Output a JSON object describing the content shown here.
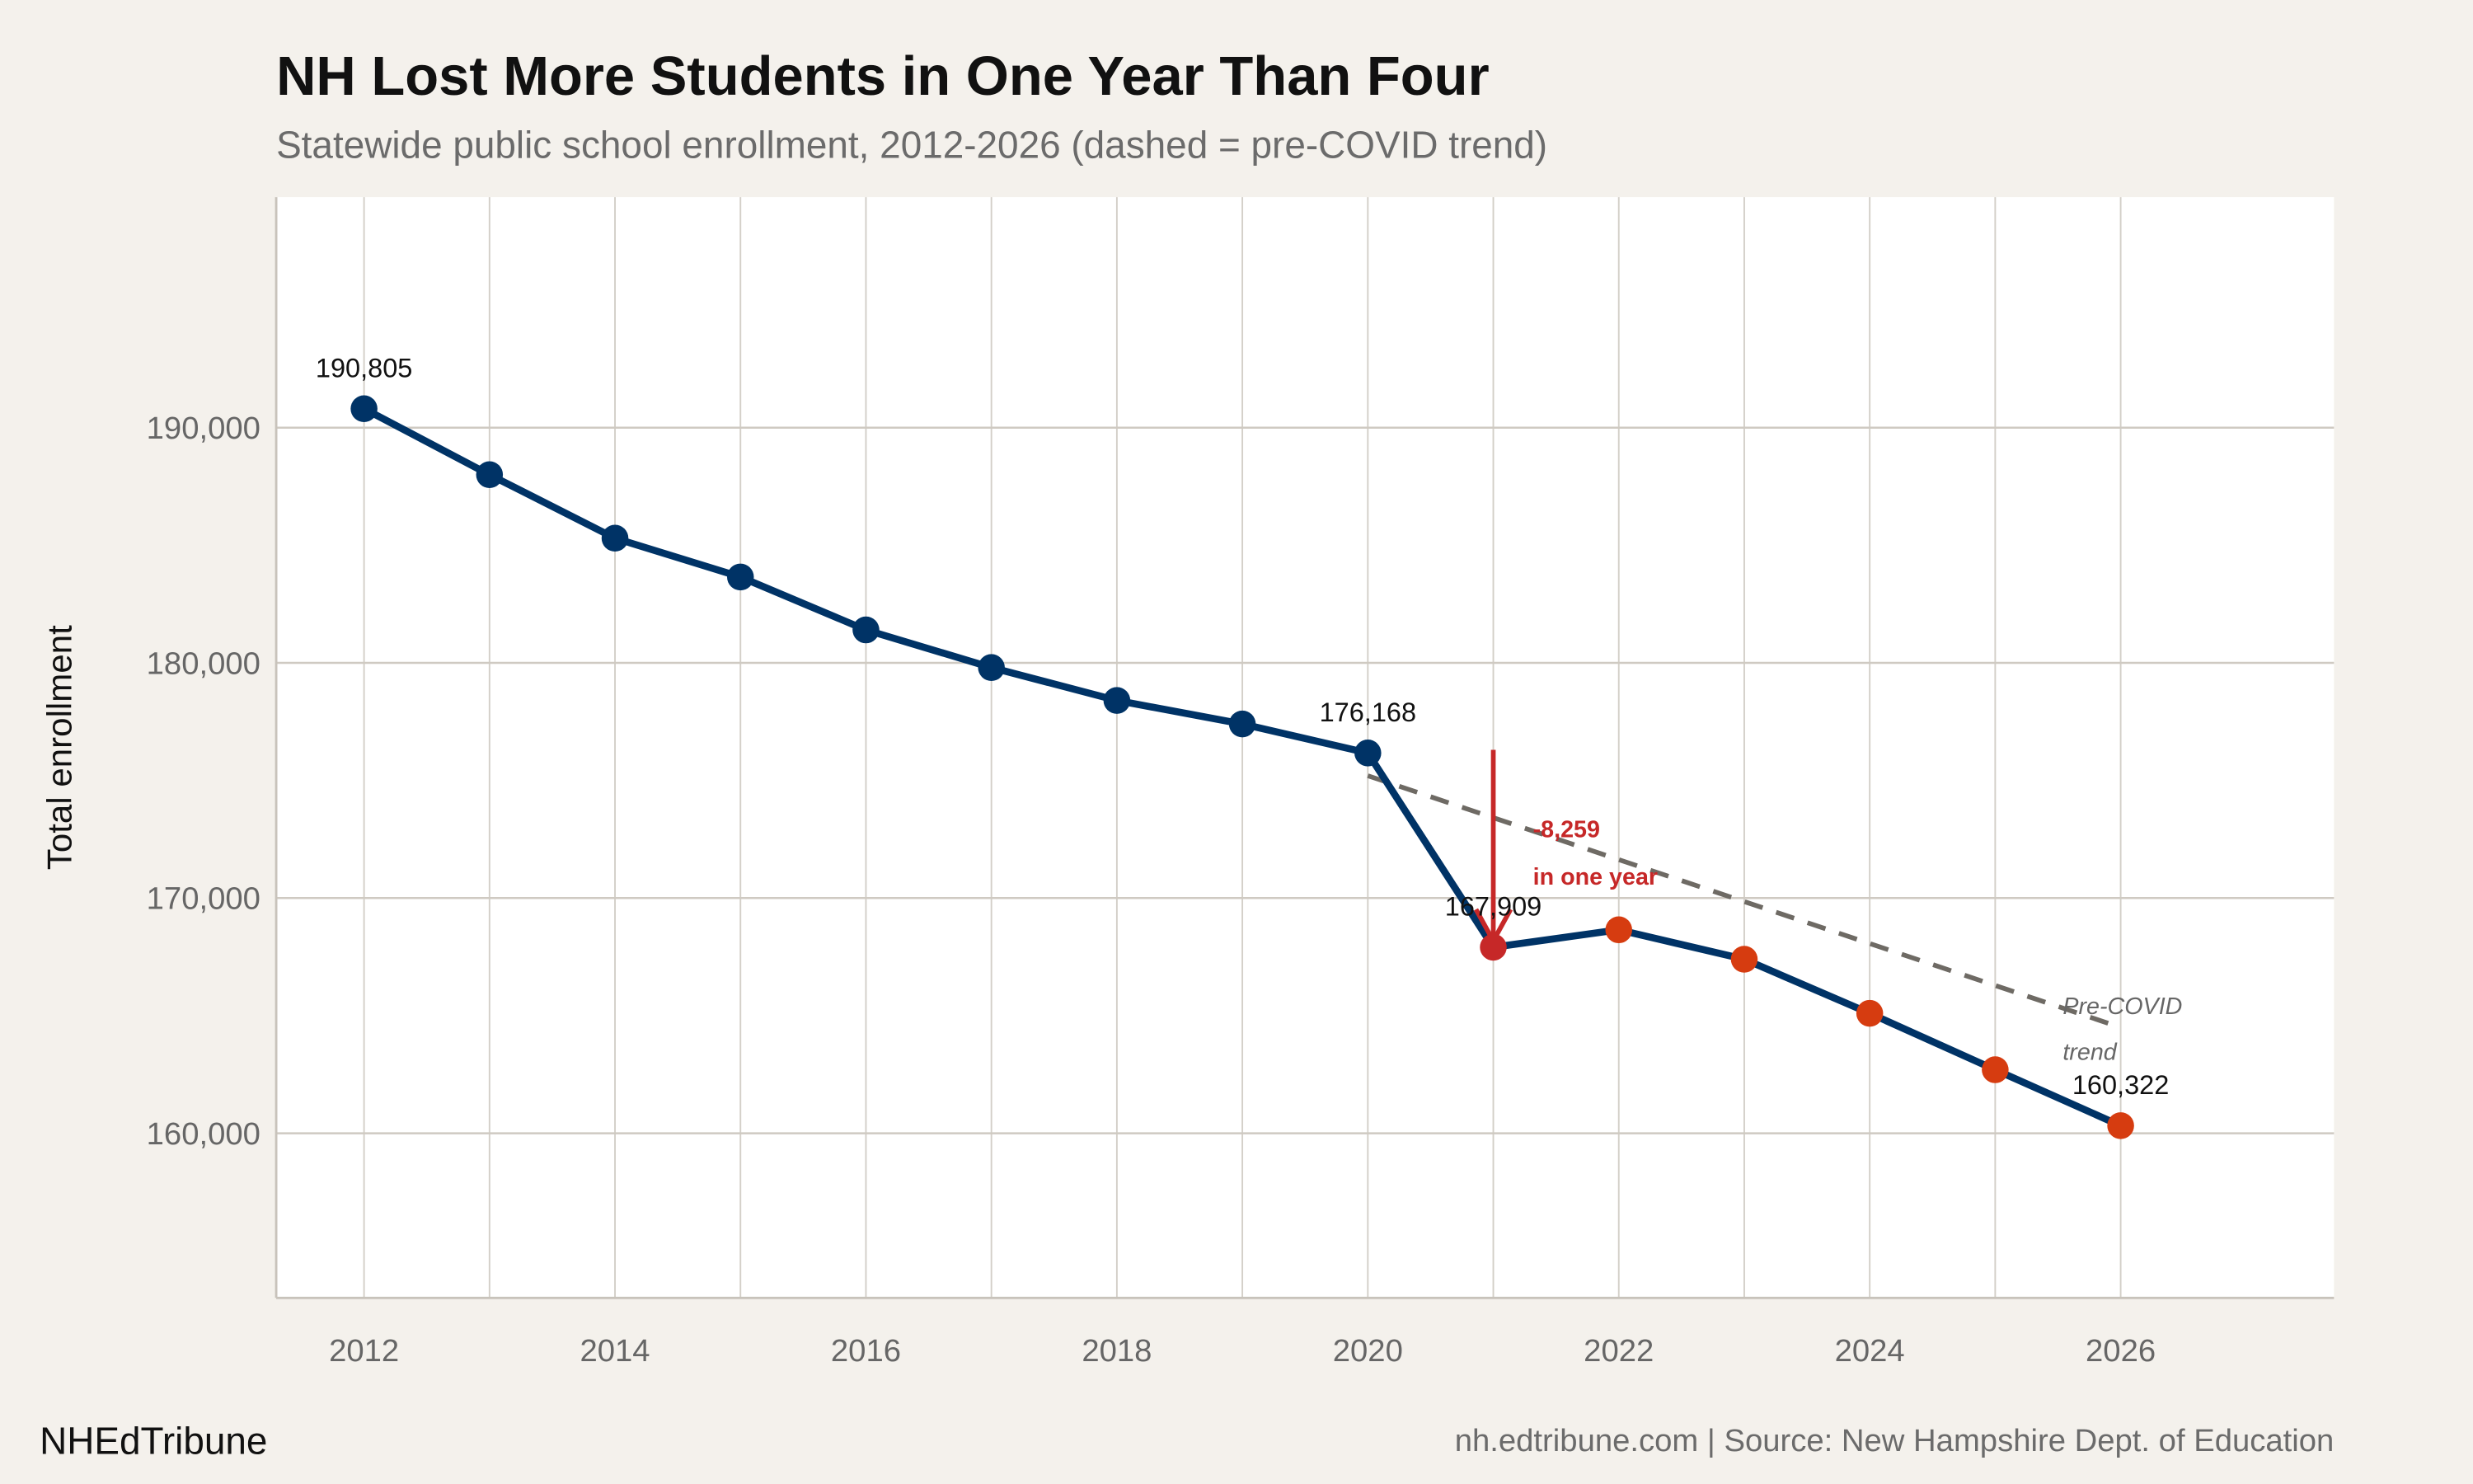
{
  "header": {
    "title": "NH Lost More Students in One Year Than Four",
    "subtitle": "Statewide public school enrollment, 2012-2026 (dashed = pre-COVID trend)"
  },
  "footer": {
    "brand": "NHEdTribune",
    "source": "nh.edtribune.com | Source: New Hampshire Dept. of Education"
  },
  "chart_data": {
    "type": "line",
    "title": "NH Lost More Students in One Year Than Four",
    "subtitle": "Statewide public school enrollment, 2012-2026 (dashed = pre-COVID trend)",
    "xlabel": "",
    "ylabel": "Total enrollment",
    "xlim": [
      2011.3,
      2027.7
    ],
    "ylim": [
      153000,
      199800
    ],
    "x_ticks": [
      "2012",
      "2014",
      "2016",
      "2018",
      "2020",
      "2022",
      "2024",
      "2026"
    ],
    "y_ticks": [
      "160,000",
      "170,000",
      "180,000",
      "190,000"
    ],
    "y_tick_values": [
      160000,
      170000,
      180000,
      190000
    ],
    "grid": true,
    "series": [
      {
        "x": [
          2012,
          2013,
          2014,
          2015,
          2016,
          2017,
          2018,
          2019,
          2020,
          2021,
          2022,
          2023,
          2024,
          2025,
          2026
        ],
        "y": [
          190805,
          188000,
          185300,
          183650,
          181400,
          179800,
          178400,
          177400,
          176168,
          167909,
          168650,
          167400,
          165100,
          162700,
          160322
        ],
        "line_color": "#003366",
        "point_colors": [
          "#003366",
          "#003366",
          "#003366",
          "#003366",
          "#003366",
          "#003366",
          "#003366",
          "#003366",
          "#003366",
          "#c62828",
          "#d63c10",
          "#d63c10",
          "#d63c10",
          "#d63c10",
          "#d63c10"
        ]
      },
      {
        "label": "Pre-COVID trend",
        "style": "dashed",
        "x": [
          2020,
          2026
        ],
        "y": [
          175200,
          164500
        ],
        "line_color": "#6e6a64"
      }
    ],
    "data_labels": [
      {
        "x": 2012,
        "text": "190,805"
      },
      {
        "x": 2020,
        "text": "176,168"
      },
      {
        "x": 2021,
        "text": "167,909"
      },
      {
        "x": 2026,
        "text": "160,322"
      }
    ],
    "annotations": {
      "drop_line1": "-8,259",
      "drop_line2": "in one year",
      "drop_color": "#c62828",
      "trend_line1": "Pre-COVID",
      "trend_line2": "trend"
    }
  }
}
